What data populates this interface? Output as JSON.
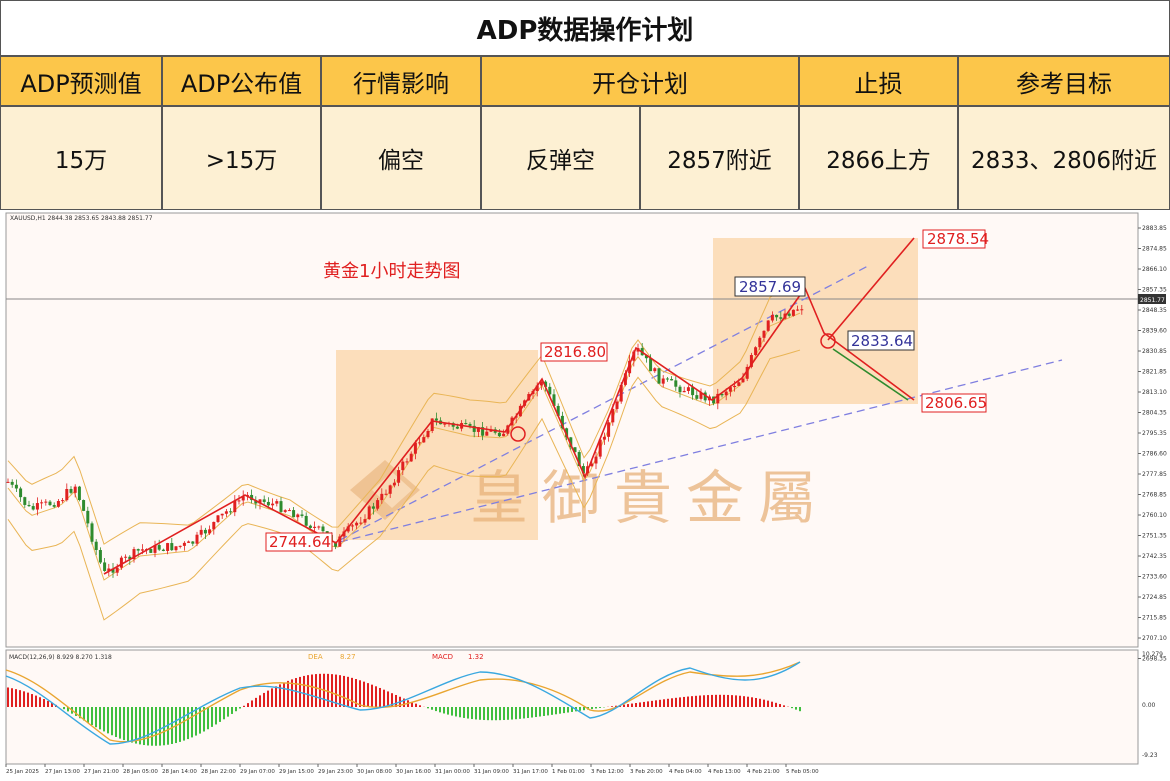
{
  "title": "ADP数据操作计划",
  "headers": {
    "forecast": "ADP预测值",
    "actual": "ADP公布值",
    "impact": "行情影响",
    "plan": "开仓计划",
    "stop": "止损",
    "target": "参考目标"
  },
  "values": {
    "forecast": "15万",
    "actual": ">15万",
    "impact": "偏空",
    "plan_action": "反弹空",
    "plan_price": "2857附近",
    "stop": "2866上方",
    "target": "2833、2806附近"
  },
  "chart": {
    "symbol_header": "XAUUSD,H1  2844.38 2853.65 2843.88 2851.77",
    "chart_title": "黄金1小时走势图",
    "watermark": "皇御貴金屬",
    "current_price": "2851.77",
    "annotations": {
      "p2878": "2878.54",
      "p2857": "2857.69",
      "p2833": "2833.64",
      "p2816": "2816.80",
      "p2806": "2806.65",
      "p2744": "2744.64"
    },
    "y_ticks": [
      "2883.85",
      "2874.85",
      "2866.10",
      "2857.35",
      "2848.35",
      "2839.60",
      "2830.85",
      "2821.85",
      "2813.10",
      "2804.35",
      "2795.35",
      "2786.60",
      "2777.85",
      "2768.85",
      "2760.10",
      "2751.35",
      "2742.35",
      "2733.60",
      "2724.85",
      "2715.85",
      "2707.10",
      "2698.35"
    ],
    "macd_label": "MACD(12,26,9) 8.929 8.270 1.318",
    "dea_label": "DEA",
    "dea_value": "8.27",
    "macd_name": "MACD",
    "macd_value": "1.32",
    "macd_ticks": [
      "10.279",
      "0.00",
      "-9.23"
    ],
    "x_ticks": [
      "25 Jan 2025",
      "27 Jan 13:00",
      "27 Jan 21:00",
      "28 Jan 05:00",
      "28 Jan 14:00",
      "28 Jan 22:00",
      "29 Jan 07:00",
      "29 Jan 15:00",
      "29 Jan 23:00",
      "30 Jan 08:00",
      "30 Jan 16:00",
      "31 Jan 00:00",
      "31 Jan 09:00",
      "31 Jan 17:00",
      "1 Feb 01:00",
      "3 Feb 12:00",
      "3 Feb 20:00",
      "4 Feb 04:00",
      "4 Feb 13:00",
      "4 Feb 21:00",
      "5 Feb 05:00"
    ]
  },
  "colors": {
    "header_bg": "#fcc64a",
    "value_bg": "#fdf0d3",
    "bull": "#e02020",
    "bear": "#2e8b2e",
    "highlight": "#f9c98a"
  }
}
